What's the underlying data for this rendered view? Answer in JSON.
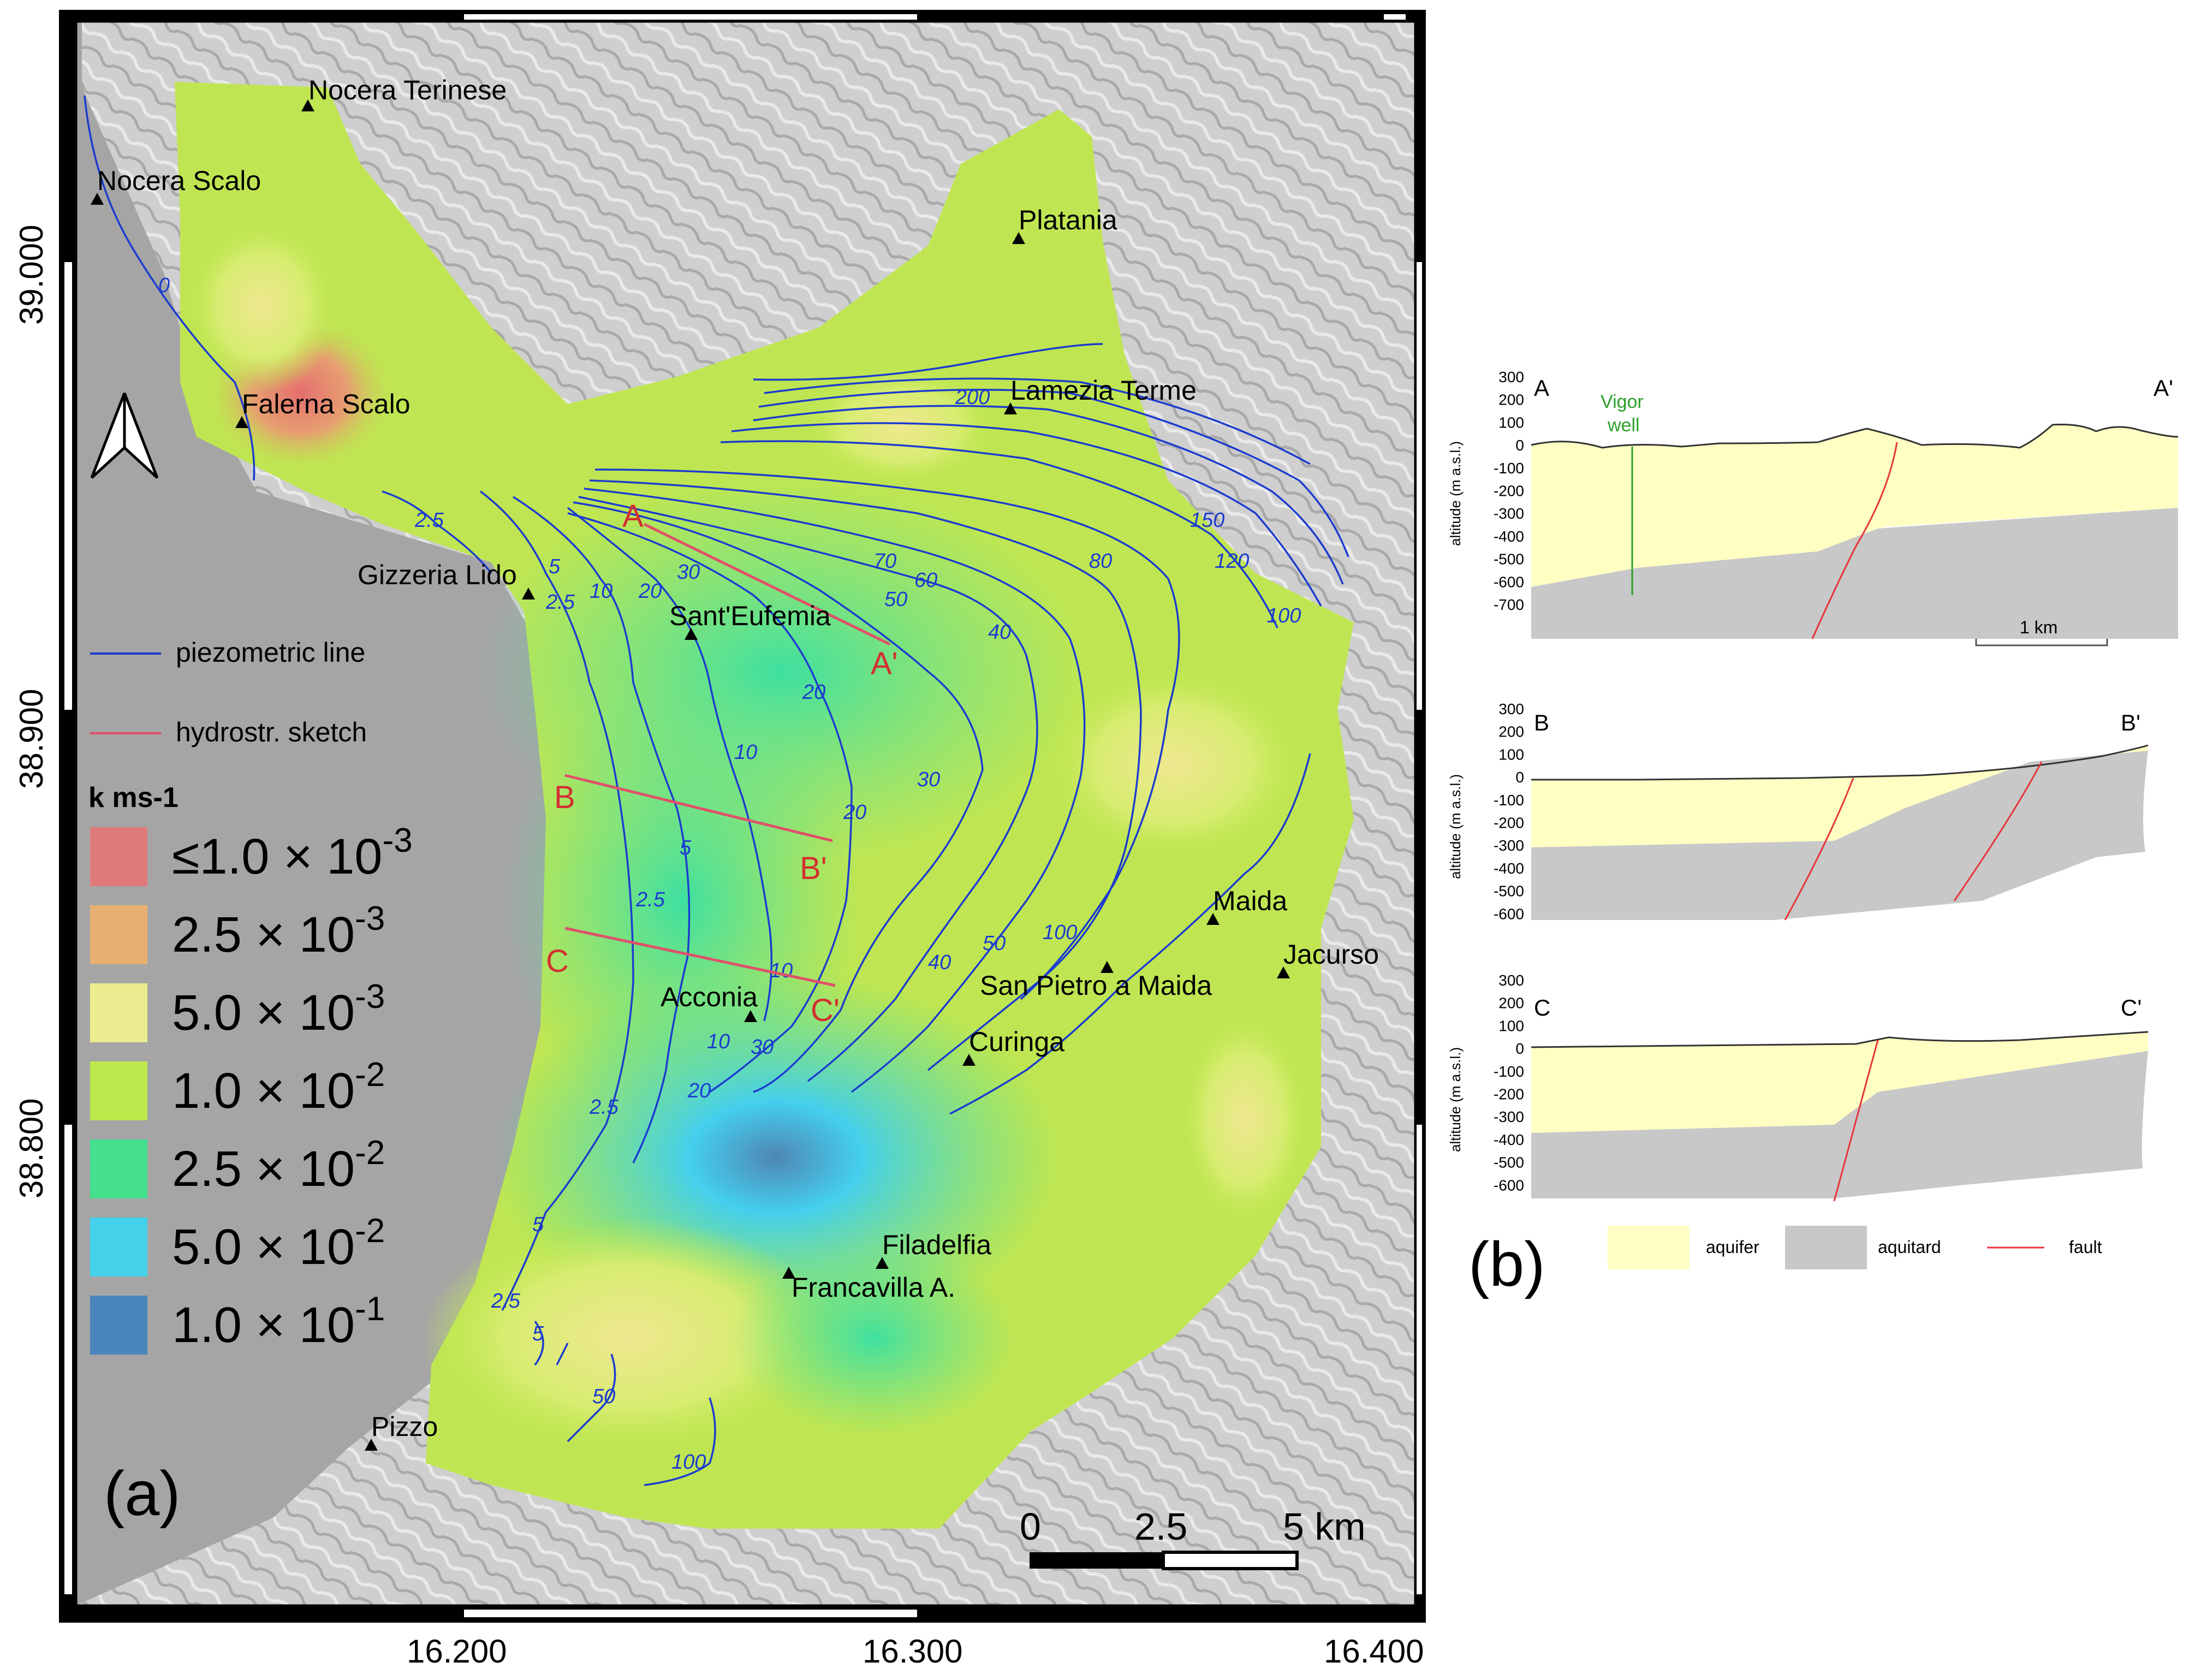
{
  "panel_a": {
    "label": "(a)",
    "legend": {
      "piezometric": "piezometric line",
      "hydrostr": "hydrostr. sketch",
      "k_title": "k ms-1",
      "classes": [
        {
          "label": "≤1.0 × 10",
          "exp": "-3",
          "color": "#e07a7a"
        },
        {
          "label": "2.5 × 10",
          "exp": "-3",
          "color": "#e8b070"
        },
        {
          "label": "5.0 × 10",
          "exp": "-3",
          "color": "#ecec90"
        },
        {
          "label": "1.0 × 10",
          "exp": "-2",
          "color": "#bde84c"
        },
        {
          "label": "2.5 × 10",
          "exp": "-2",
          "color": "#44e08e"
        },
        {
          "label": "5.0 × 10",
          "exp": "-2",
          "color": "#44d2ea"
        },
        {
          "label": "1.0 × 10",
          "exp": "-1",
          "color": "#4a86bc"
        }
      ]
    },
    "axes": {
      "x_ticks": [
        "16.200",
        "16.300",
        "16.400"
      ],
      "y_ticks": [
        "39.000",
        "38.900",
        "38.800"
      ]
    },
    "places": [
      {
        "name": "Nocera Terinese"
      },
      {
        "name": "Nocera Scalo"
      },
      {
        "name": "Platania"
      },
      {
        "name": "Falerna Scalo"
      },
      {
        "name": "Lamezia Terme"
      },
      {
        "name": "Gizzeria Lido"
      },
      {
        "name": "Sant'Eufemia"
      },
      {
        "name": "Maida"
      },
      {
        "name": "Jacurso"
      },
      {
        "name": "San Pietro a Maida"
      },
      {
        "name": "Acconia"
      },
      {
        "name": "Curinga"
      },
      {
        "name": "Filadelfia"
      },
      {
        "name": "Francavilla A."
      },
      {
        "name": "Pizzo"
      }
    ],
    "contour_labels": [
      "0",
      "2.5",
      "2.5",
      "5",
      "10",
      "20",
      "30",
      "70",
      "60",
      "50",
      "40",
      "80",
      "150",
      "120",
      "100",
      "200",
      "20",
      "10",
      "20",
      "30",
      "5",
      "2.5",
      "10",
      "40",
      "50",
      "100",
      "10",
      "20",
      "30",
      "2.5",
      "5",
      "2.5",
      "5",
      "50",
      "100"
    ],
    "section_labels": [
      "A",
      "A'",
      "B",
      "B'",
      "C",
      "C'"
    ],
    "scale": {
      "labels": [
        "0",
        "2.5",
        "5 km"
      ]
    }
  },
  "panel_b": {
    "label": "(b)",
    "ylabel": "altitude (m a.s.l.)",
    "sections": [
      {
        "left": "A",
        "right": "A'",
        "ticks": [
          "300",
          "200",
          "100",
          "0",
          "-100",
          "-200",
          "-300",
          "-400",
          "-500",
          "-600",
          "-700"
        ],
        "well": "Vigor\nwell",
        "well_l1": "Vigor",
        "well_l2": "well",
        "scale": "1 km"
      },
      {
        "left": "B",
        "right": "B'",
        "ticks": [
          "300",
          "200",
          "100",
          "0",
          "-100",
          "-200",
          "-300",
          "-400",
          "-500",
          "-600"
        ]
      },
      {
        "left": "C",
        "right": "C'",
        "ticks": [
          "300",
          "200",
          "100",
          "0",
          "-100",
          "-200",
          "-300",
          "-400",
          "-500",
          "-600"
        ]
      }
    ],
    "legend": {
      "aquifer": "aquifer",
      "aquitard": "aquitard",
      "fault": "fault"
    },
    "colors": {
      "aquifer": "#ffffc4",
      "aquitard": "#c8c8c8",
      "fault": "#e8343a",
      "well": "#2aa02a"
    }
  }
}
